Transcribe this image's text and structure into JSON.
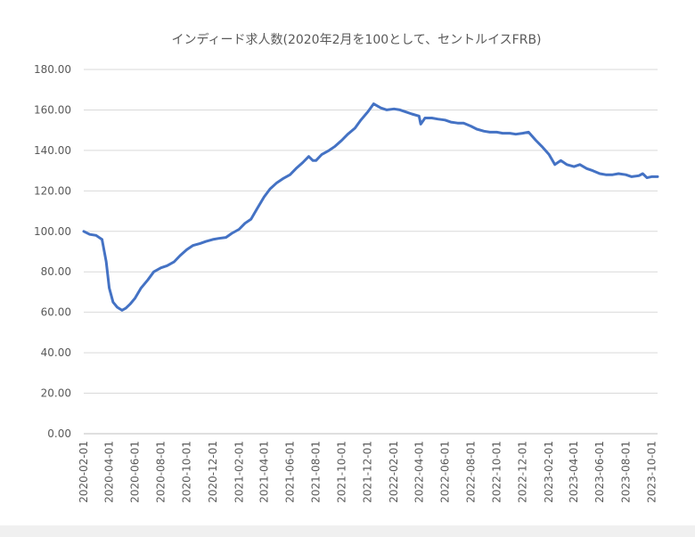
{
  "chart_data": {
    "type": "line",
    "title": "インディード求人数(2020年2月を100として、セントルイスFRB)",
    "xlabel": "",
    "ylabel": "",
    "ylim": [
      0,
      180
    ],
    "yticks": [
      "0.00",
      "20.00",
      "40.00",
      "60.00",
      "80.00",
      "100.00",
      "120.00",
      "140.00",
      "160.00",
      "180.00"
    ],
    "xticks": [
      "2020-02-01",
      "2020-04-01",
      "2020-06-01",
      "2020-08-01",
      "2020-10-01",
      "2020-12-01",
      "2021-02-01",
      "2021-04-01",
      "2021-06-01",
      "2021-08-01",
      "2021-10-01",
      "2021-12-01",
      "2022-02-01",
      "2022-04-01",
      "2022-06-01",
      "2022-08-01",
      "2022-10-01",
      "2022-12-01",
      "2023-02-01",
      "2023-04-01",
      "2023-06-01",
      "2023-08-01",
      "2023-10-01"
    ],
    "xlim": [
      "2020-02-01",
      "2023-10-15"
    ],
    "grid": true,
    "legend": "none",
    "colors": {
      "series": "#4472c4",
      "grid": "#d9d9d9",
      "text": "#595959"
    },
    "series": [
      {
        "x": [
          "2020-02-01",
          "2020-02-15",
          "2020-03-01",
          "2020-03-15",
          "2020-03-25",
          "2020-04-01",
          "2020-04-10",
          "2020-04-20",
          "2020-05-01",
          "2020-05-10",
          "2020-05-20",
          "2020-06-01",
          "2020-06-15",
          "2020-07-01",
          "2020-07-15",
          "2020-08-01",
          "2020-08-15",
          "2020-09-01",
          "2020-09-15",
          "2020-10-01",
          "2020-10-15",
          "2020-11-01",
          "2020-11-15",
          "2020-12-01",
          "2020-12-15",
          "2021-01-01",
          "2021-01-15",
          "2021-02-01",
          "2021-02-15",
          "2021-03-01",
          "2021-03-15",
          "2021-04-01",
          "2021-04-15",
          "2021-05-01",
          "2021-05-15",
          "2021-06-01",
          "2021-06-15",
          "2021-07-01",
          "2021-07-15",
          "2021-07-25",
          "2021-08-01",
          "2021-08-15",
          "2021-09-01",
          "2021-09-15",
          "2021-10-01",
          "2021-10-15",
          "2021-11-01",
          "2021-11-15",
          "2021-12-01",
          "2021-12-15",
          "2022-01-01",
          "2022-01-15",
          "2022-02-01",
          "2022-02-15",
          "2022-03-01",
          "2022-03-15",
          "2022-04-01",
          "2022-04-05",
          "2022-04-15",
          "2022-05-01",
          "2022-05-15",
          "2022-06-01",
          "2022-06-15",
          "2022-07-01",
          "2022-07-15",
          "2022-08-01",
          "2022-08-15",
          "2022-09-01",
          "2022-09-15",
          "2022-10-01",
          "2022-10-15",
          "2022-11-01",
          "2022-11-15",
          "2022-12-01",
          "2022-12-15",
          "2023-01-01",
          "2023-01-15",
          "2023-02-01",
          "2023-02-15",
          "2023-03-01",
          "2023-03-15",
          "2023-04-01",
          "2023-04-15",
          "2023-05-01",
          "2023-05-15",
          "2023-06-01",
          "2023-06-15",
          "2023-07-01",
          "2023-07-15",
          "2023-08-01",
          "2023-08-15",
          "2023-09-01",
          "2023-09-10",
          "2023-09-20",
          "2023-10-01",
          "2023-10-15"
        ],
        "values": [
          100.0,
          98.5,
          98.0,
          96.0,
          85.0,
          72.0,
          65.0,
          62.5,
          61.0,
          62.0,
          64.0,
          67.0,
          72.0,
          76.0,
          80.0,
          82.0,
          83.0,
          85.0,
          88.0,
          91.0,
          93.0,
          94.0,
          95.0,
          96.0,
          96.5,
          97.0,
          99.0,
          101.0,
          104.0,
          106.0,
          111.0,
          117.0,
          121.0,
          124.0,
          126.0,
          128.0,
          131.0,
          134.0,
          137.0,
          135.0,
          135.0,
          138.0,
          140.0,
          142.0,
          145.0,
          148.0,
          151.0,
          155.0,
          159.0,
          163.0,
          161.0,
          160.0,
          160.5,
          160.0,
          159.0,
          158.0,
          157.0,
          153.0,
          156.0,
          156.0,
          155.5,
          155.0,
          154.0,
          153.5,
          153.5,
          152.0,
          150.5,
          149.5,
          149.0,
          149.0,
          148.5,
          148.5,
          148.0,
          148.5,
          149.0,
          145.0,
          142.0,
          138.0,
          133.0,
          135.0,
          133.0,
          132.0,
          133.0,
          131.0,
          130.0,
          128.5,
          128.0,
          128.0,
          128.5,
          128.0,
          127.0,
          127.5,
          128.5,
          126.5,
          127.0,
          127.0
        ]
      }
    ]
  }
}
